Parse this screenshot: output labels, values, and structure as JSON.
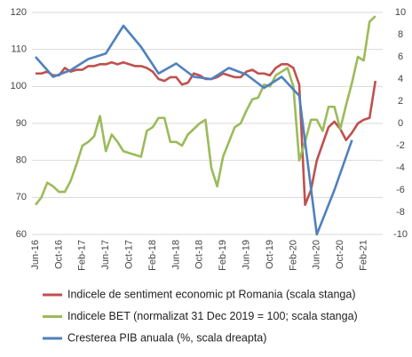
{
  "chart_data": {
    "type": "line",
    "categories": [
      "Jun-16",
      null,
      null,
      null,
      "Oct-16",
      null,
      null,
      null,
      "Feb-17",
      null,
      null,
      null,
      "Jun-17",
      null,
      null,
      null,
      "Oct-17",
      null,
      null,
      null,
      "Feb-18",
      null,
      null,
      null,
      "Jun-18",
      null,
      null,
      null,
      "Oct-18",
      null,
      null,
      null,
      "Feb-19",
      null,
      null,
      null,
      "Jun-19",
      null,
      null,
      null,
      "Oct-19",
      null,
      null,
      null,
      "Feb-20",
      null,
      null,
      null,
      "Jun-20",
      null,
      null,
      null,
      "Oct-20",
      null,
      null,
      null,
      "Feb-21",
      null,
      null
    ],
    "ylim": [
      60,
      120
    ],
    "yticks": [
      60,
      70,
      80,
      90,
      100,
      110,
      120
    ],
    "y2lim": [
      -10,
      10
    ],
    "y2ticks": [
      -10,
      -8,
      -6,
      -4,
      -2,
      0,
      2,
      4,
      6,
      8,
      10
    ],
    "connect_gaps": true,
    "series": [
      {
        "name": "Indicele de sentiment economic pt Romania (scala stanga)",
        "color": "#c0504d",
        "values": [
          103.5,
          103.5,
          104,
          103,
          103,
          105,
          104,
          104.5,
          104.5,
          105.5,
          105.5,
          106,
          106,
          106.5,
          106,
          106.5,
          106,
          105.5,
          105.5,
          105,
          104,
          102,
          101.5,
          102.5,
          102.5,
          100.5,
          101,
          103.5,
          103,
          102,
          102,
          102.5,
          103.5,
          103,
          102.5,
          102.5,
          104,
          104.5,
          103.5,
          103.5,
          103,
          105,
          106,
          106,
          105,
          100.5,
          68,
          72,
          80,
          84.5,
          89,
          90.5,
          88.5,
          85.5,
          87.5,
          90,
          91,
          91.5,
          101.5
        ]
      },
      {
        "name": "Indicele BET (normalizat 31 Dec 2019 = 100; scala stanga)",
        "color": "#9bbb59",
        "values": [
          68,
          70,
          74,
          73,
          71.5,
          71.5,
          74.5,
          79,
          84,
          85,
          86.5,
          92,
          82.5,
          87,
          85,
          82.5,
          82,
          81.5,
          81,
          88,
          89,
          91.5,
          91.5,
          85,
          85,
          84,
          87,
          88.5,
          90,
          91,
          78,
          73,
          81,
          85,
          89,
          90,
          93.5,
          96.5,
          97,
          100.5,
          100,
          103,
          104,
          105,
          100,
          80,
          85,
          91,
          91,
          88,
          94.5,
          94.5,
          88.5,
          95,
          101,
          108,
          107,
          117.5,
          119
        ]
      },
      {
        "name": "Cresterea PIB anuala (%, scala dreapta)",
        "color": "#4f81bd",
        "axis": "y2",
        "values": [
          6,
          null,
          null,
          4.2,
          null,
          null,
          4.8,
          null,
          null,
          5.8,
          null,
          null,
          6.3,
          null,
          null,
          8.8,
          null,
          null,
          6.9,
          null,
          null,
          4.5,
          null,
          null,
          5.4,
          null,
          null,
          4.2,
          null,
          null,
          4.0,
          null,
          null,
          5.0,
          null,
          null,
          4.4,
          null,
          null,
          3.2,
          null,
          null,
          4.2,
          null,
          null,
          2.5,
          null,
          null,
          -10,
          null,
          null,
          -6,
          null,
          null,
          -1.5,
          null,
          null,
          null,
          null
        ]
      }
    ]
  }
}
